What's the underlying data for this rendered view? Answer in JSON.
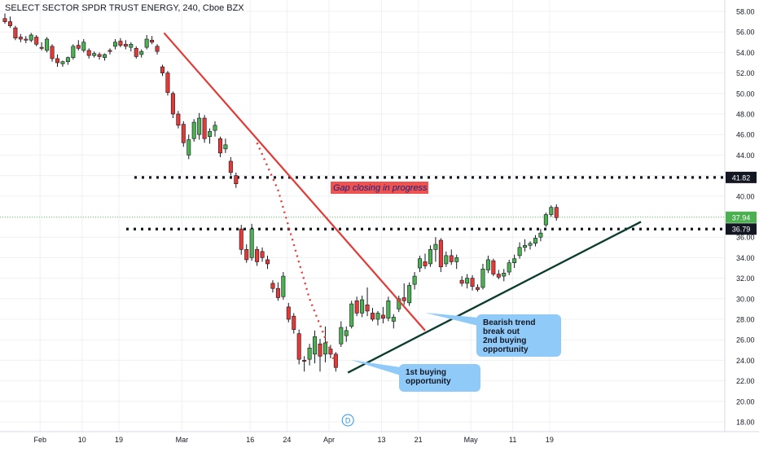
{
  "title": "SELECT SECTOR SPDR TRUST ENERGY, 240, Cboe BZX",
  "colors": {
    "up": "#4caf50",
    "down": "#e53935",
    "trend": "#e53935",
    "support": "#0b3d2e",
    "dotted_level": "#131722",
    "callout_fill": "#90caf9",
    "gap_label_fill": "#ef5350",
    "gap_label_text": "#1a237e",
    "price_badge": "#4caf50"
  },
  "chart_data": {
    "type": "candlestick",
    "y_axis": {
      "min": 17,
      "max": 59,
      "ticks": [
        "18.00",
        "20.00",
        "22.00",
        "24.00",
        "26.00",
        "28.00",
        "30.00",
        "32.00",
        "34.00",
        "36.00",
        "38.00",
        "40.00",
        "42.00",
        "44.00",
        "46.00",
        "48.00",
        "50.00",
        "52.00",
        "54.00",
        "56.00",
        "58.00"
      ],
      "grid": true
    },
    "x_axis": {
      "ticks": [
        {
          "label": "Feb",
          "t": 6.7
        },
        {
          "label": "10",
          "t": 14.7
        },
        {
          "label": "19",
          "t": 21.7
        },
        {
          "label": "Mar",
          "t": 33.7
        },
        {
          "label": "16",
          "t": 46.7
        },
        {
          "label": "24",
          "t": 53.7
        },
        {
          "label": "Apr",
          "t": 61.7
        },
        {
          "label": "13",
          "t": 71.7
        },
        {
          "label": "21",
          "t": 78.7
        },
        {
          "label": "May",
          "t": 88.7
        },
        {
          "label": "11",
          "t": 96.7
        },
        {
          "label": "19",
          "t": 103.7
        }
      ]
    },
    "candles": [
      {
        "t": 0,
        "o": 57.3,
        "h": 57.8,
        "l": 56.8,
        "c": 57.0
      },
      {
        "t": 1,
        "o": 57.0,
        "h": 57.5,
        "l": 56.4,
        "c": 56.6
      },
      {
        "t": 2,
        "o": 56.4,
        "h": 56.6,
        "l": 55.2,
        "c": 55.4
      },
      {
        "t": 3,
        "o": 55.5,
        "h": 55.8,
        "l": 55.0,
        "c": 55.3
      },
      {
        "t": 4,
        "o": 55.3,
        "h": 55.6,
        "l": 54.9,
        "c": 55.2
      },
      {
        "t": 5,
        "o": 55.2,
        "h": 55.9,
        "l": 55.0,
        "c": 55.7
      },
      {
        "t": 6,
        "o": 55.5,
        "h": 55.7,
        "l": 54.6,
        "c": 54.8
      },
      {
        "t": 7,
        "o": 54.5,
        "h": 55.0,
        "l": 54.2,
        "c": 54.4
      },
      {
        "t": 8,
        "o": 54.2,
        "h": 55.5,
        "l": 54.0,
        "c": 55.3
      },
      {
        "t": 9,
        "o": 54.6,
        "h": 54.8,
        "l": 53.1,
        "c": 53.4
      },
      {
        "t": 10,
        "o": 53.4,
        "h": 53.8,
        "l": 52.6,
        "c": 53.0
      },
      {
        "t": 11,
        "o": 52.9,
        "h": 53.2,
        "l": 52.6,
        "c": 53.1
      },
      {
        "t": 12,
        "o": 53.1,
        "h": 53.6,
        "l": 52.8,
        "c": 53.5
      },
      {
        "t": 13,
        "o": 53.5,
        "h": 54.8,
        "l": 53.3,
        "c": 54.6
      },
      {
        "t": 14,
        "o": 54.7,
        "h": 55.2,
        "l": 54.2,
        "c": 54.4
      },
      {
        "t": 15,
        "o": 54.2,
        "h": 55.3,
        "l": 54.0,
        "c": 55.0
      },
      {
        "t": 16,
        "o": 54.2,
        "h": 54.4,
        "l": 53.4,
        "c": 53.7
      },
      {
        "t": 17,
        "o": 53.7,
        "h": 54.1,
        "l": 53.5,
        "c": 53.9
      },
      {
        "t": 18,
        "o": 53.8,
        "h": 54.0,
        "l": 53.3,
        "c": 53.6
      },
      {
        "t": 19,
        "o": 53.5,
        "h": 53.9,
        "l": 53.2,
        "c": 53.8
      },
      {
        "t": 20,
        "o": 54.2,
        "h": 54.4,
        "l": 53.8,
        "c": 54.1
      },
      {
        "t": 21,
        "o": 54.6,
        "h": 55.3,
        "l": 54.3,
        "c": 55.0
      },
      {
        "t": 22,
        "o": 55.1,
        "h": 55.4,
        "l": 54.5,
        "c": 54.7
      },
      {
        "t": 23,
        "o": 54.8,
        "h": 55.2,
        "l": 54.3,
        "c": 54.6
      },
      {
        "t": 24,
        "o": 54.5,
        "h": 55.0,
        "l": 54.1,
        "c": 54.8
      },
      {
        "t": 25,
        "o": 54.4,
        "h": 54.6,
        "l": 53.4,
        "c": 53.6
      },
      {
        "t": 26,
        "o": 53.8,
        "h": 54.3,
        "l": 53.5,
        "c": 54.1
      },
      {
        "t": 27,
        "o": 54.5,
        "h": 55.7,
        "l": 54.3,
        "c": 55.3
      },
      {
        "t": 28,
        "o": 55.2,
        "h": 55.6,
        "l": 54.8,
        "c": 55.0
      },
      {
        "t": 29,
        "o": 54.6,
        "h": 54.8,
        "l": 53.8,
        "c": 54.1
      },
      {
        "t": 30,
        "o": 52.6,
        "h": 52.8,
        "l": 51.7,
        "c": 52.0
      },
      {
        "t": 31,
        "o": 52.0,
        "h": 52.2,
        "l": 49.8,
        "c": 50.1
      },
      {
        "t": 32,
        "o": 50.0,
        "h": 50.2,
        "l": 47.6,
        "c": 48.0
      },
      {
        "t": 33,
        "o": 48.0,
        "h": 48.3,
        "l": 46.6,
        "c": 46.9
      },
      {
        "t": 34,
        "o": 47.0,
        "h": 47.3,
        "l": 44.8,
        "c": 45.2
      },
      {
        "t": 35,
        "o": 44.0,
        "h": 46.0,
        "l": 43.6,
        "c": 45.5
      },
      {
        "t": 36,
        "o": 45.6,
        "h": 47.5,
        "l": 45.3,
        "c": 47.2
      },
      {
        "t": 37,
        "o": 46.0,
        "h": 48.1,
        "l": 45.5,
        "c": 47.6
      },
      {
        "t": 38,
        "o": 47.6,
        "h": 47.9,
        "l": 45.2,
        "c": 45.6
      },
      {
        "t": 39,
        "o": 45.8,
        "h": 46.6,
        "l": 45.1,
        "c": 46.3
      },
      {
        "t": 40,
        "o": 46.4,
        "h": 47.3,
        "l": 45.8,
        "c": 46.9
      },
      {
        "t": 41,
        "o": 45.6,
        "h": 45.8,
        "l": 43.8,
        "c": 44.2
      },
      {
        "t": 42,
        "o": 44.6,
        "h": 45.6,
        "l": 44.2,
        "c": 45.0
      },
      {
        "t": 43,
        "o": 43.4,
        "h": 43.8,
        "l": 42.0,
        "c": 42.3
      },
      {
        "t": 44,
        "o": 42.0,
        "h": 42.3,
        "l": 40.8,
        "c": 41.2
      },
      {
        "t": 45,
        "o": 36.8,
        "h": 37.2,
        "l": 34.3,
        "c": 34.8
      },
      {
        "t": 46,
        "o": 34.8,
        "h": 35.3,
        "l": 33.5,
        "c": 33.8
      },
      {
        "t": 47,
        "o": 34.0,
        "h": 37.3,
        "l": 33.7,
        "c": 36.8
      },
      {
        "t": 48,
        "o": 34.8,
        "h": 35.1,
        "l": 33.2,
        "c": 33.6
      },
      {
        "t": 49,
        "o": 34.6,
        "h": 35.0,
        "l": 33.6,
        "c": 34.0
      },
      {
        "t": 50,
        "o": 33.8,
        "h": 34.2,
        "l": 32.9,
        "c": 33.4
      },
      {
        "t": 51,
        "o": 31.5,
        "h": 31.8,
        "l": 30.6,
        "c": 31.0
      },
      {
        "t": 52,
        "o": 31.0,
        "h": 31.6,
        "l": 29.8,
        "c": 30.1
      },
      {
        "t": 53,
        "o": 30.2,
        "h": 32.6,
        "l": 29.9,
        "c": 32.2
      },
      {
        "t": 54,
        "o": 29.2,
        "h": 29.6,
        "l": 27.7,
        "c": 28.0
      },
      {
        "t": 55,
        "o": 28.3,
        "h": 28.6,
        "l": 26.6,
        "c": 27.0
      },
      {
        "t": 56,
        "o": 26.6,
        "h": 27.0,
        "l": 23.6,
        "c": 24.1
      },
      {
        "t": 57,
        "o": 24.0,
        "h": 24.4,
        "l": 22.9,
        "c": 23.9
      },
      {
        "t": 58,
        "o": 24.1,
        "h": 25.6,
        "l": 23.5,
        "c": 25.2
      },
      {
        "t": 59,
        "o": 24.6,
        "h": 26.9,
        "l": 23.7,
        "c": 26.3
      },
      {
        "t": 60,
        "o": 25.6,
        "h": 26.1,
        "l": 22.9,
        "c": 24.4
      },
      {
        "t": 61,
        "o": 24.6,
        "h": 27.3,
        "l": 23.8,
        "c": 25.7
      },
      {
        "t": 62,
        "o": 25.1,
        "h": 25.5,
        "l": 24.2,
        "c": 24.6
      },
      {
        "t": 63,
        "o": 24.6,
        "h": 24.8,
        "l": 22.9,
        "c": 23.3
      },
      {
        "t": 64,
        "o": 25.6,
        "h": 27.8,
        "l": 25.3,
        "c": 27.2
      },
      {
        "t": 65,
        "o": 26.4,
        "h": 27.3,
        "l": 25.8,
        "c": 26.9
      },
      {
        "t": 66,
        "o": 27.3,
        "h": 29.8,
        "l": 27.1,
        "c": 29.5
      },
      {
        "t": 67,
        "o": 29.8,
        "h": 30.2,
        "l": 28.3,
        "c": 28.6
      },
      {
        "t": 68,
        "o": 28.6,
        "h": 30.3,
        "l": 28.2,
        "c": 29.9
      },
      {
        "t": 69,
        "o": 29.4,
        "h": 31.1,
        "l": 28.3,
        "c": 28.8
      },
      {
        "t": 70,
        "o": 28.6,
        "h": 29.1,
        "l": 27.8,
        "c": 28.0
      },
      {
        "t": 71,
        "o": 28.0,
        "h": 28.8,
        "l": 27.4,
        "c": 28.6
      },
      {
        "t": 72,
        "o": 28.4,
        "h": 29.2,
        "l": 27.6,
        "c": 28.1
      },
      {
        "t": 73,
        "o": 28.1,
        "h": 30.2,
        "l": 27.8,
        "c": 29.8
      },
      {
        "t": 74,
        "o": 27.8,
        "h": 28.5,
        "l": 27.1,
        "c": 28.2
      },
      {
        "t": 75,
        "o": 29.0,
        "h": 30.3,
        "l": 28.7,
        "c": 30.0
      },
      {
        "t": 76,
        "o": 30.1,
        "h": 31.5,
        "l": 29.4,
        "c": 29.8
      },
      {
        "t": 77,
        "o": 29.6,
        "h": 31.6,
        "l": 29.3,
        "c": 31.3
      },
      {
        "t": 78,
        "o": 31.4,
        "h": 32.6,
        "l": 30.9,
        "c": 32.2
      },
      {
        "t": 79,
        "o": 33.0,
        "h": 34.2,
        "l": 32.6,
        "c": 33.9
      },
      {
        "t": 80,
        "o": 33.6,
        "h": 34.4,
        "l": 32.9,
        "c": 33.2
      },
      {
        "t": 81,
        "o": 33.4,
        "h": 35.2,
        "l": 33.1,
        "c": 34.8
      },
      {
        "t": 82,
        "o": 34.8,
        "h": 36.0,
        "l": 33.6,
        "c": 35.3
      },
      {
        "t": 83,
        "o": 35.7,
        "h": 35.9,
        "l": 32.6,
        "c": 33.1
      },
      {
        "t": 84,
        "o": 33.4,
        "h": 34.6,
        "l": 33.1,
        "c": 34.2
      },
      {
        "t": 85,
        "o": 34.2,
        "h": 34.8,
        "l": 33.3,
        "c": 33.6
      },
      {
        "t": 86,
        "o": 33.6,
        "h": 34.3,
        "l": 32.9,
        "c": 34.0
      },
      {
        "t": 87,
        "o": 31.8,
        "h": 32.2,
        "l": 31.2,
        "c": 31.5
      },
      {
        "t": 88,
        "o": 31.5,
        "h": 32.4,
        "l": 31.0,
        "c": 32.0
      },
      {
        "t": 89,
        "o": 32.0,
        "h": 32.3,
        "l": 30.8,
        "c": 31.2
      },
      {
        "t": 90,
        "o": 31.1,
        "h": 31.4,
        "l": 30.7,
        "c": 30.9
      },
      {
        "t": 91,
        "o": 31.1,
        "h": 33.4,
        "l": 30.9,
        "c": 32.9
      },
      {
        "t": 92,
        "o": 32.8,
        "h": 34.2,
        "l": 32.5,
        "c": 33.8
      },
      {
        "t": 93,
        "o": 33.7,
        "h": 33.9,
        "l": 32.2,
        "c": 32.4
      },
      {
        "t": 94,
        "o": 32.4,
        "h": 32.8,
        "l": 31.9,
        "c": 32.1
      },
      {
        "t": 95,
        "o": 32.2,
        "h": 32.9,
        "l": 31.7,
        "c": 32.5
      },
      {
        "t": 96,
        "o": 32.6,
        "h": 33.8,
        "l": 32.3,
        "c": 33.5
      },
      {
        "t": 97,
        "o": 33.5,
        "h": 34.3,
        "l": 33.0,
        "c": 33.9
      },
      {
        "t": 98,
        "o": 34.2,
        "h": 35.5,
        "l": 33.9,
        "c": 35.0
      },
      {
        "t": 99,
        "o": 35.0,
        "h": 35.8,
        "l": 34.6,
        "c": 35.2
      },
      {
        "t": 100,
        "o": 35.2,
        "h": 35.6,
        "l": 34.8,
        "c": 35.4
      },
      {
        "t": 101,
        "o": 35.4,
        "h": 36.2,
        "l": 35.1,
        "c": 35.9
      },
      {
        "t": 102,
        "o": 36.0,
        "h": 36.8,
        "l": 35.6,
        "c": 36.4
      },
      {
        "t": 103,
        "o": 37.2,
        "h": 38.4,
        "l": 37.0,
        "c": 38.2
      },
      {
        "t": 104,
        "o": 38.2,
        "h": 39.1,
        "l": 38.0,
        "c": 38.9
      },
      {
        "t": 105,
        "o": 38.9,
        "h": 39.2,
        "l": 37.6,
        "c": 37.9
      }
    ],
    "annotations": {
      "levels": [
        {
          "value": 41.82,
          "label": "41.82"
        },
        {
          "value": 36.79,
          "label": "36.79"
        }
      ],
      "current_price": {
        "value": 37.94,
        "label": "37.94"
      },
      "gap_label": "Gap closing in progress",
      "callouts": [
        {
          "name": "first-buying",
          "lines": [
            "1st buying",
            "opportunity"
          ]
        },
        {
          "name": "breakout",
          "lines": [
            "Bearish trend",
            "break out",
            "2nd buying",
            "opportunity"
          ]
        }
      ],
      "dividend_marker": "D"
    }
  }
}
